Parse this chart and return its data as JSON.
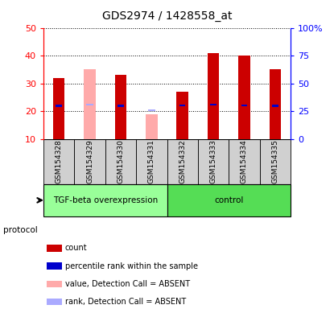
{
  "title": "GDS2974 / 1428558_at",
  "samples": [
    "GSM154328",
    "GSM154329",
    "GSM154330",
    "GSM154331",
    "GSM154332",
    "GSM154333",
    "GSM154334",
    "GSM154335"
  ],
  "count_values": [
    32,
    null,
    33,
    null,
    27,
    41,
    40,
    35
  ],
  "count_absent_values": [
    null,
    35,
    null,
    19,
    null,
    null,
    null,
    null
  ],
  "percentile_values": [
    30,
    null,
    30,
    null,
    30.5,
    31,
    30.5,
    30
  ],
  "rank_absent_values": [
    null,
    31,
    null,
    26,
    null,
    null,
    null,
    null
  ],
  "ylim_left": [
    10,
    50
  ],
  "ylim_right": [
    0,
    100
  ],
  "left_ticks": [
    10,
    20,
    30,
    40,
    50
  ],
  "right_ticks": [
    0,
    25,
    50,
    75,
    100
  ],
  "right_tick_labels": [
    "0",
    "25",
    "50",
    "75",
    "100%"
  ],
  "bar_width": 0.35,
  "color_count": "#cc0000",
  "color_count_absent": "#ffaaaa",
  "color_percentile": "#0000cc",
  "color_rank_absent": "#aaaaff",
  "group_labels": [
    "TGF-beta overexpression",
    "control"
  ],
  "group_colors": [
    "#99ff99",
    "#55dd55"
  ],
  "protocol_label": "protocol",
  "legend_items": [
    {
      "label": "count",
      "color": "#cc0000"
    },
    {
      "label": "percentile rank within the sample",
      "color": "#0000cc"
    },
    {
      "label": "value, Detection Call = ABSENT",
      "color": "#ffaaaa"
    },
    {
      "label": "rank, Detection Call = ABSENT",
      "color": "#aaaaff"
    }
  ]
}
